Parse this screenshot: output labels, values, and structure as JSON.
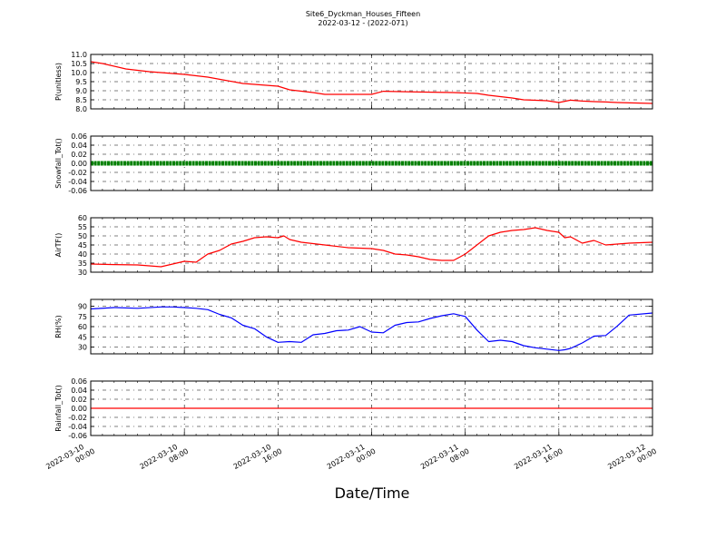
{
  "chart_data": {
    "type": "line",
    "title": "Site6_Dyckman_Houses_Fifteen",
    "subtitle": "2022-03-12 - (2022-071)",
    "xlabel": "Date/Time",
    "x_tick_labels": [
      [
        "2022-03-10",
        "00:00"
      ],
      [
        "2022-03-10",
        "08:00"
      ],
      [
        "2022-03-10",
        "16:00"
      ],
      [
        "2022-03-11",
        "00:00"
      ],
      [
        "2022-03-11",
        "08:00"
      ],
      [
        "2022-03-11",
        "16:00"
      ],
      [
        "2022-03-12",
        "00:00"
      ]
    ],
    "x_range_hours": [
      0,
      48
    ],
    "grid": true,
    "panels": [
      {
        "ylabel": "P(unitless)",
        "ylim": [
          8.0,
          11.0
        ],
        "yticks": [
          "8.0",
          "8.5",
          "9.0",
          "9.5",
          "10.0",
          "10.5",
          "11.0"
        ],
        "series": [
          {
            "color": "#ff0000",
            "style": "line",
            "x": [
              0,
              1,
              3,
              5,
              8,
              10,
              13,
              16,
              17,
              19,
              20,
              24,
              25,
              28,
              31,
              33,
              34,
              36,
              37,
              39,
              40,
              41,
              42,
              43,
              44,
              45,
              48
            ],
            "y": [
              10.6,
              10.5,
              10.2,
              10.05,
              9.9,
              9.75,
              9.4,
              9.25,
              9.05,
              8.9,
              8.8,
              8.8,
              8.97,
              8.93,
              8.9,
              8.85,
              8.75,
              8.6,
              8.5,
              8.45,
              8.35,
              8.48,
              8.43,
              8.4,
              8.38,
              8.35,
              8.3
            ]
          }
        ]
      },
      {
        "ylabel": "Snowfall_Tot()",
        "ylim": [
          -0.06,
          0.06
        ],
        "yticks": [
          "-0.06",
          "-0.04",
          "-0.02",
          "0.00",
          "0.02",
          "0.04",
          "0.06"
        ],
        "series": [
          {
            "color": "#008000",
            "style": "dots",
            "x": [
              0,
              48
            ],
            "y": [
              0.0,
              0.0
            ]
          }
        ]
      },
      {
        "ylabel": "AirTF()",
        "ylim": [
          30,
          60
        ],
        "yticks": [
          "30",
          "35",
          "40",
          "45",
          "50",
          "55",
          "60"
        ],
        "series": [
          {
            "color": "#ff0000",
            "style": "line",
            "x": [
              0,
              2,
              4,
              6,
              7,
              8,
              9,
              10,
              11,
              12,
              13,
              14,
              15,
              16,
              16.5,
              17,
              18,
              20,
              22,
              24,
              25,
              26,
              27,
              28,
              29,
              30,
              31,
              32,
              33,
              34,
              35,
              36,
              37,
              38,
              39,
              40,
              40.5,
              41,
              42,
              43,
              44,
              46,
              48
            ],
            "y": [
              34.5,
              34.2,
              34.0,
              33.0,
              34.5,
              36.0,
              35.5,
              40.0,
              42.0,
              45.5,
              47.0,
              49.0,
              49.5,
              49.0,
              50.0,
              48.0,
              46.5,
              45.0,
              43.5,
              43.0,
              42.0,
              40.0,
              39.5,
              38.5,
              37.0,
              36.5,
              36.5,
              40.0,
              45.0,
              50.0,
              52.0,
              53.0,
              53.5,
              54.5,
              53.0,
              52.0,
              49.0,
              49.5,
              46.0,
              47.5,
              45.0,
              46.0,
              46.5
            ]
          }
        ]
      },
      {
        "ylabel": "RH(%)",
        "ylim": [
          20,
          100
        ],
        "yticks": [
          "30",
          "45",
          "60",
          "75",
          "90"
        ],
        "series": [
          {
            "color": "#0000ff",
            "style": "line",
            "x": [
              0,
              2,
              4,
              6,
              7,
              8,
              9,
              10,
              11,
              12,
              13,
              14,
              15,
              16,
              17,
              18,
              19,
              20,
              21,
              22,
              23,
              24,
              25,
              26,
              27,
              28,
              29,
              30,
              31,
              32,
              33,
              34,
              35,
              36,
              37,
              38,
              39,
              40,
              40.5,
              41,
              42,
              43,
              44,
              45,
              46,
              48
            ],
            "y": [
              86,
              88,
              87,
              89,
              89,
              88,
              87,
              85,
              78,
              73,
              62,
              57,
              45,
              37,
              38,
              37,
              48,
              50,
              54,
              55,
              60,
              52,
              51,
              62,
              66,
              67,
              72,
              76,
              79,
              75,
              55,
              38,
              40,
              38,
              32,
              29,
              27,
              25,
              26,
              28,
              36,
              46,
              47,
              61,
              77,
              80
            ]
          }
        ]
      },
      {
        "ylabel": "Rainfall_Tot()",
        "ylim": [
          -0.06,
          0.06
        ],
        "yticks": [
          "-0.06",
          "-0.04",
          "-0.02",
          "0.00",
          "0.02",
          "0.04",
          "0.06"
        ],
        "series": [
          {
            "color": "#ff0000",
            "style": "line",
            "x": [
              0,
              48
            ],
            "y": [
              0.0,
              0.0
            ]
          }
        ]
      }
    ]
  }
}
